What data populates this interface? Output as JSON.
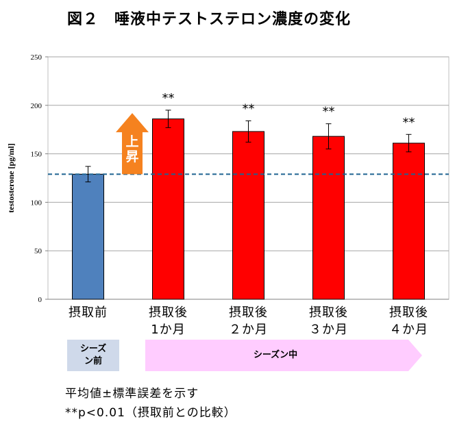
{
  "title": "図２　唾液中テストステロン濃度の変化",
  "chart_data": {
    "type": "bar",
    "categories": [
      "摂取前",
      "摂取後\n1か月",
      "摂取後\n２か月",
      "摂取後\n３か月",
      "摂取後\n４か月"
    ],
    "values": [
      129,
      186,
      173,
      168,
      161
    ],
    "errors": [
      8,
      9,
      11,
      13,
      9
    ],
    "significance": [
      "",
      "**",
      "**",
      "**",
      "**"
    ],
    "bar_colors": [
      "#4f81bd",
      "#ff0000",
      "#ff0000",
      "#ff0000",
      "#ff0000"
    ],
    "ylabel": "testosterone [pg/ml]",
    "ylim": [
      0,
      250
    ],
    "yticks": [
      0,
      50,
      100,
      150,
      200,
      250
    ],
    "baseline": 129,
    "grid": true,
    "arrow_label": "上昇",
    "arrow_color": "#f5821f"
  },
  "phases": {
    "pre": "シーズン前",
    "in": "シーズン中"
  },
  "notes": {
    "line1": "平均値±標準誤差を示す",
    "line2": "**p<0.01（摂取前との比較）"
  }
}
